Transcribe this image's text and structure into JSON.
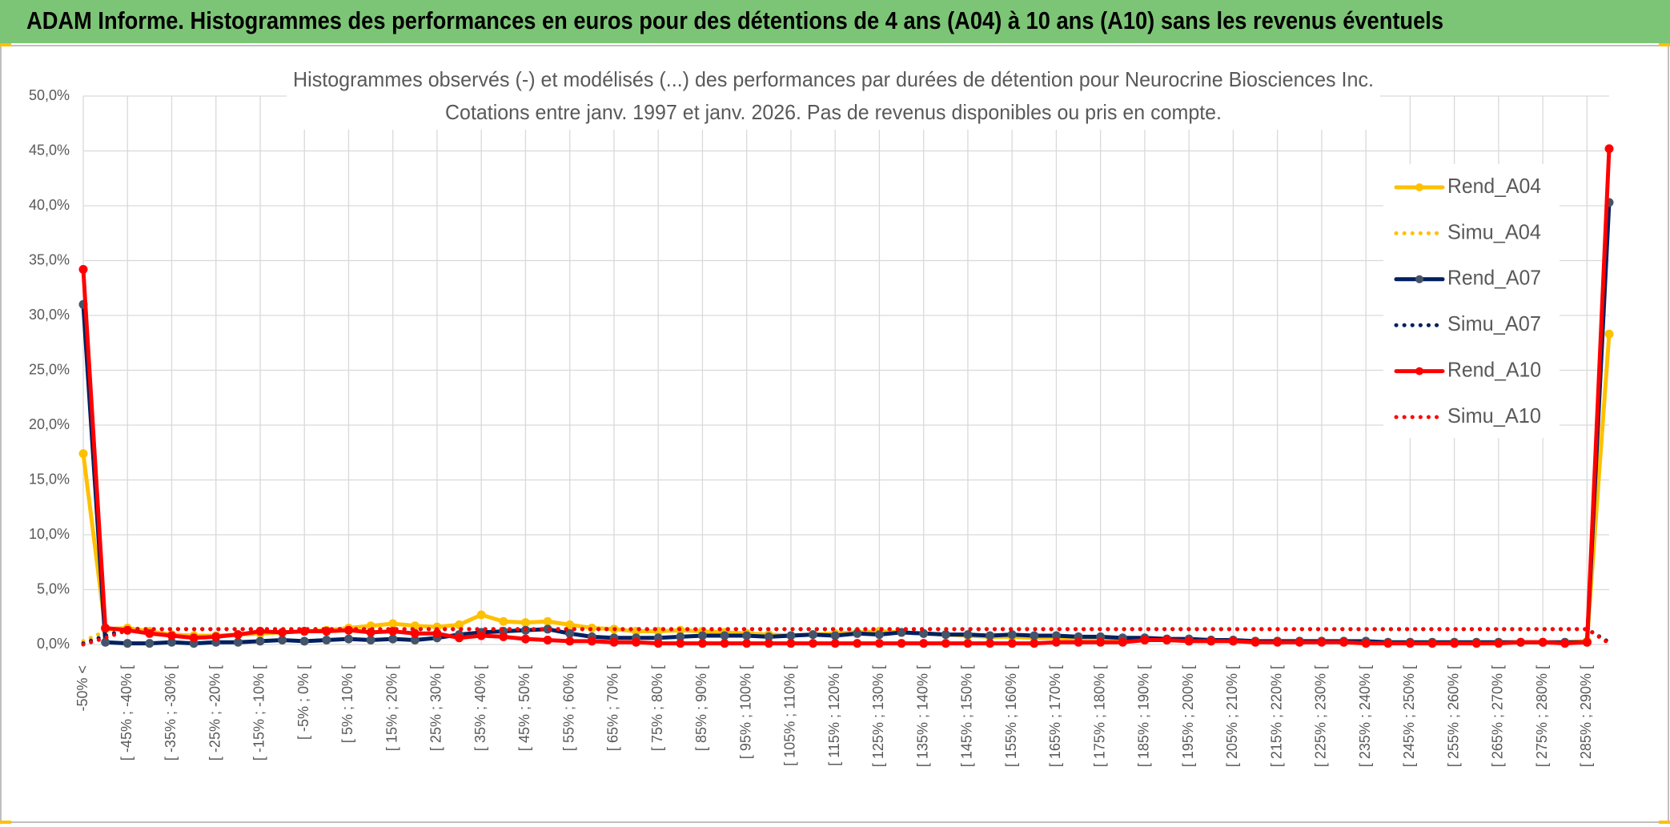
{
  "header": {
    "title": "ADAM Informe. Histogrammes des performances en euros pour des détentions de 4 ans (A04) à 10 ans (A10) sans les revenus éventuels"
  },
  "chart_data": {
    "type": "line",
    "title": "Histogrammes observés (-) et modélisés (...) des performances par durées de détention pour Neurocrine Biosciences Inc.",
    "subtitle": "Cotations entre janv. 1997 et janv. 2026. Pas de revenus disponibles ou pris en compte.",
    "categories": [
      "-50% <",
      null,
      "[ -45% ; -40% [",
      null,
      "[ -35% ; -30% [",
      null,
      "[ -25% ; -20% [",
      null,
      "[ -15% ; -10% [",
      null,
      "[ -5% ; 0% [",
      null,
      "[ 5% ; 10% [",
      null,
      "[ 15% ; 20% [",
      null,
      "[ 25% ; 30% [",
      null,
      "[ 35% ; 40% [",
      null,
      "[ 45% ; 50% [",
      null,
      "[ 55% ; 60% [",
      null,
      "[ 65% ; 70% [",
      null,
      "[ 75% ; 80% [",
      null,
      "[ 85% ; 90% [",
      null,
      "[ 95% ; 100% [",
      null,
      "[ 105% ; 110% [",
      null,
      "[ 115% ; 120% [",
      null,
      "[ 125% ; 130% [",
      null,
      "[ 135% ; 140% [",
      null,
      "[ 145% ; 150% [",
      null,
      "[ 155% ; 160% [",
      null,
      "[ 165% ; 170% [",
      null,
      "[ 175% ; 180% [",
      null,
      "[ 185% ; 190% [",
      null,
      "[ 195% ; 200% [",
      null,
      "[ 205% ; 210% [",
      null,
      "[ 215% ; 220% [",
      null,
      "[ 225% ; 230% [",
      null,
      "[ 235% ; 240% [",
      null,
      "[ 245% ; 250% [",
      null,
      "[ 255% ; 260% [",
      null,
      "[ 265% ; 270% [",
      null,
      "[ 275% ; 280% [",
      null,
      "[ 285% ; 290% [",
      null
    ],
    "ylim": [
      0,
      50
    ],
    "yticks": [
      {
        "value": 0,
        "label": "0,0%"
      },
      {
        "value": 5,
        "label": "5,0%"
      },
      {
        "value": 10,
        "label": "10,0%"
      },
      {
        "value": 15,
        "label": "15,0%"
      },
      {
        "value": 20,
        "label": "20,0%"
      },
      {
        "value": 25,
        "label": "25,0%"
      },
      {
        "value": 30,
        "label": "30,0%"
      },
      {
        "value": 35,
        "label": "35,0%"
      },
      {
        "value": 40,
        "label": "40,0%"
      },
      {
        "value": 45,
        "label": "45,0%"
      },
      {
        "value": 50,
        "label": "50,0%"
      }
    ],
    "grid": true,
    "legend": "right",
    "series": [
      {
        "name": "Rend_A04",
        "color": "#ffc000",
        "marker_color": "#ffc000",
        "style": "solid",
        "marker": true,
        "values": [
          17.4,
          1.4,
          1.5,
          1.2,
          0.9,
          0.8,
          0.8,
          0.9,
          1.0,
          1.1,
          1.2,
          1.3,
          1.5,
          1.7,
          1.9,
          1.7,
          1.6,
          1.8,
          2.7,
          2.1,
          2.0,
          2.1,
          1.8,
          1.5,
          1.4,
          1.2,
          1.2,
          1.3,
          1.2,
          1.1,
          1.0,
          0.9,
          0.8,
          0.9,
          1.0,
          1.1,
          1.2,
          1.1,
          1.0,
          0.9,
          0.8,
          0.7,
          0.7,
          0.6,
          0.6,
          0.5,
          0.5,
          0.5,
          0.4,
          0.4,
          0.4,
          0.4,
          0.3,
          0.3,
          0.3,
          0.3,
          0.3,
          0.2,
          0.2,
          0.2,
          0.2,
          0.2,
          0.2,
          0.2,
          0.2,
          0.2,
          0.2,
          0.2,
          0.3,
          28.3
        ]
      },
      {
        "name": "Simu_A04",
        "color": "#ffc000",
        "style": "dotted",
        "marker": false,
        "values": [
          0.3,
          1.2,
          1.5,
          1.4,
          1.4,
          1.4,
          1.4,
          1.4,
          1.4,
          1.4,
          1.4,
          1.4,
          1.4,
          1.4,
          1.4,
          1.4,
          1.4,
          1.4,
          1.4,
          1.4,
          1.4,
          1.4,
          1.4,
          1.4,
          1.4,
          1.4,
          1.4,
          1.4,
          1.4,
          1.4,
          1.4,
          1.4,
          1.4,
          1.4,
          1.4,
          1.4,
          1.4,
          1.4,
          1.4,
          1.4,
          1.4,
          1.4,
          1.4,
          1.4,
          1.4,
          1.4,
          1.4,
          1.4,
          1.4,
          1.4,
          1.4,
          1.4,
          1.4,
          1.4,
          1.4,
          1.4,
          1.4,
          1.4,
          1.4,
          1.4,
          1.4,
          1.4,
          1.4,
          1.4,
          1.4,
          1.4,
          1.4,
          1.4,
          1.4,
          0.2
        ]
      },
      {
        "name": "Rend_A07",
        "color": "#002060",
        "marker_color": "#44546a",
        "style": "solid",
        "marker": true,
        "values": [
          31.0,
          0.2,
          0.1,
          0.1,
          0.2,
          0.1,
          0.2,
          0.2,
          0.3,
          0.4,
          0.3,
          0.4,
          0.5,
          0.4,
          0.5,
          0.4,
          0.6,
          0.9,
          1.1,
          1.2,
          1.3,
          1.4,
          1.0,
          0.7,
          0.6,
          0.6,
          0.6,
          0.7,
          0.8,
          0.8,
          0.8,
          0.7,
          0.8,
          0.9,
          0.8,
          1.0,
          0.9,
          1.1,
          1.0,
          0.9,
          0.9,
          0.8,
          0.9,
          0.8,
          0.8,
          0.7,
          0.7,
          0.6,
          0.6,
          0.5,
          0.5,
          0.4,
          0.4,
          0.3,
          0.3,
          0.3,
          0.3,
          0.3,
          0.3,
          0.2,
          0.2,
          0.2,
          0.2,
          0.2,
          0.2,
          0.2,
          0.2,
          0.2,
          0.2,
          40.3
        ]
      },
      {
        "name": "Simu_A07",
        "color": "#002060",
        "style": "dotted",
        "marker": false,
        "values": [
          0.1,
          0.8,
          1.4,
          1.4,
          1.4,
          1.4,
          1.4,
          1.4,
          1.4,
          1.4,
          1.4,
          1.4,
          1.4,
          1.4,
          1.4,
          1.4,
          1.4,
          1.4,
          1.4,
          1.4,
          1.4,
          1.4,
          1.4,
          1.4,
          1.4,
          1.4,
          1.4,
          1.4,
          1.4,
          1.4,
          1.4,
          1.4,
          1.4,
          1.4,
          1.4,
          1.4,
          1.4,
          1.4,
          1.4,
          1.4,
          1.4,
          1.4,
          1.4,
          1.4,
          1.4,
          1.4,
          1.4,
          1.4,
          1.4,
          1.4,
          1.4,
          1.4,
          1.4,
          1.4,
          1.4,
          1.4,
          1.4,
          1.4,
          1.4,
          1.4,
          1.4,
          1.4,
          1.4,
          1.4,
          1.4,
          1.4,
          1.4,
          1.4,
          1.4,
          0.2
        ]
      },
      {
        "name": "Rend_A10",
        "color": "#ff0000",
        "marker_color": "#ff0000",
        "style": "solid",
        "marker": true,
        "values": [
          34.2,
          1.5,
          1.3,
          1.0,
          0.8,
          0.6,
          0.7,
          0.9,
          1.2,
          1.1,
          1.2,
          1.2,
          1.3,
          1.1,
          1.2,
          1.0,
          1.0,
          0.6,
          0.8,
          0.7,
          0.5,
          0.4,
          0.3,
          0.3,
          0.2,
          0.2,
          0.1,
          0.1,
          0.1,
          0.1,
          0.1,
          0.1,
          0.1,
          0.1,
          0.1,
          0.1,
          0.1,
          0.1,
          0.1,
          0.1,
          0.1,
          0.1,
          0.1,
          0.1,
          0.2,
          0.2,
          0.2,
          0.2,
          0.4,
          0.4,
          0.3,
          0.3,
          0.3,
          0.2,
          0.2,
          0.2,
          0.2,
          0.2,
          0.1,
          0.1,
          0.1,
          0.1,
          0.1,
          0.1,
          0.1,
          0.2,
          0.2,
          0.1,
          0.2,
          45.2
        ]
      },
      {
        "name": "Simu_A10",
        "color": "#ff0000",
        "style": "dotted",
        "marker": false,
        "values": [
          0.0,
          0.6,
          1.3,
          1.4,
          1.4,
          1.4,
          1.4,
          1.4,
          1.4,
          1.4,
          1.4,
          1.4,
          1.4,
          1.4,
          1.4,
          1.4,
          1.4,
          1.4,
          1.4,
          1.4,
          1.4,
          1.4,
          1.4,
          1.4,
          1.4,
          1.4,
          1.4,
          1.4,
          1.4,
          1.4,
          1.4,
          1.4,
          1.4,
          1.4,
          1.4,
          1.4,
          1.4,
          1.4,
          1.4,
          1.4,
          1.4,
          1.4,
          1.4,
          1.4,
          1.4,
          1.4,
          1.4,
          1.4,
          1.4,
          1.4,
          1.4,
          1.4,
          1.4,
          1.4,
          1.4,
          1.4,
          1.4,
          1.4,
          1.4,
          1.4,
          1.4,
          1.4,
          1.4,
          1.4,
          1.4,
          1.4,
          1.4,
          1.4,
          1.4,
          0.1
        ]
      }
    ]
  }
}
